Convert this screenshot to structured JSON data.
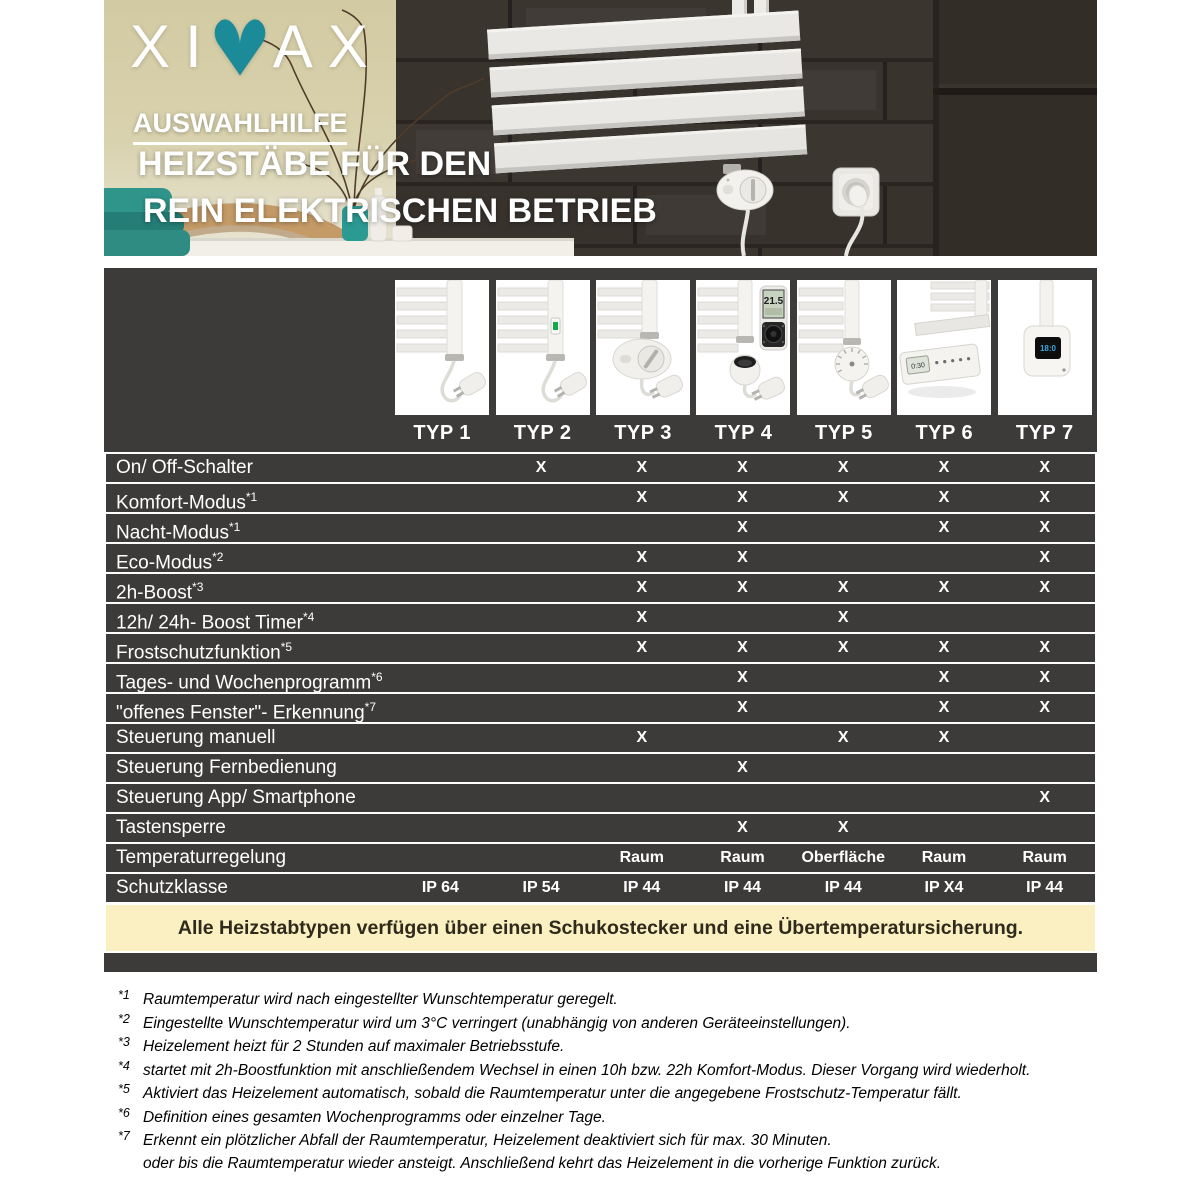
{
  "hero": {
    "logo_text_left": "XI",
    "logo_text_right": "AX",
    "eyebrow": "AUSWAHLHILFE",
    "title_line1": "HEIZSTÄBE FÜR DEN",
    "title_line2": "REIN ELEKTRISCHEN BETRIEB",
    "brand_teal": "#1b8a99"
  },
  "table": {
    "column_headers": [
      "TYP 1",
      "TYP 2",
      "TYP 3",
      "TYP 4",
      "TYP 5",
      "TYP 6",
      "TYP 7"
    ],
    "product_images": [
      "typ1-heating-rod-with-plug",
      "typ2-heating-rod-with-switch",
      "typ3-oval-dial-control",
      "typ4-round-control-with-remote",
      "typ5-thermostat-knob",
      "typ6-integrated-control-panel",
      "typ7-square-digital-control"
    ],
    "mark": "X",
    "rows": [
      {
        "label": "On/ Off-Schalter",
        "sup": "",
        "cells": [
          "",
          "X",
          "X",
          "X",
          "X",
          "X",
          "X"
        ]
      },
      {
        "label": "Komfort-Modus",
        "sup": "*1",
        "cells": [
          "",
          "",
          "X",
          "X",
          "X",
          "X",
          "X"
        ]
      },
      {
        "label": "Nacht-Modus",
        "sup": "*1",
        "cells": [
          "",
          "",
          "",
          "X",
          "",
          "X",
          "X"
        ]
      },
      {
        "label": "Eco-Modus",
        "sup": "*2",
        "cells": [
          "",
          "",
          "X",
          "X",
          "",
          "",
          "X"
        ]
      },
      {
        "label": "2h-Boost",
        "sup": "*3",
        "cells": [
          "",
          "",
          "X",
          "X",
          "X",
          "X",
          "X"
        ]
      },
      {
        "label": "12h/ 24h- Boost Timer",
        "sup": "*4",
        "cells": [
          "",
          "",
          "X",
          "",
          "X",
          "",
          ""
        ]
      },
      {
        "label": "Frostschutzfunktion",
        "sup": "*5",
        "cells": [
          "",
          "",
          "X",
          "X",
          "X",
          "X",
          "X"
        ]
      },
      {
        "label": "Tages- und Wochenprogramm",
        "sup": "*6",
        "cells": [
          "",
          "",
          "",
          "X",
          "",
          "X",
          "X"
        ]
      },
      {
        "label": "\"offenes Fenster\"- Erkennung",
        "sup": "*7",
        "cells": [
          "",
          "",
          "",
          "X",
          "",
          "X",
          "X"
        ]
      },
      {
        "label": "Steuerung manuell",
        "sup": "",
        "cells": [
          "",
          "",
          "X",
          "",
          "X",
          "X",
          ""
        ]
      },
      {
        "label": "Steuerung Fernbedienung",
        "sup": "",
        "cells": [
          "",
          "",
          "",
          "X",
          "",
          "",
          ""
        ]
      },
      {
        "label": "Steuerung App/ Smartphone",
        "sup": "",
        "cells": [
          "",
          "",
          "",
          "",
          "",
          "",
          "X"
        ]
      },
      {
        "label": "Tastensperre",
        "sup": "",
        "cells": [
          "",
          "",
          "",
          "X",
          "X",
          "",
          ""
        ]
      },
      {
        "label": "Temperaturregelung",
        "sup": "",
        "cells": [
          "",
          "",
          "Raum",
          "Raum",
          "Oberfläche",
          "Raum",
          "Raum"
        ]
      },
      {
        "label": "Schutzklasse",
        "sup": "",
        "cells": [
          "IP 64",
          "IP 54",
          "IP 44",
          "IP 44",
          "IP 44",
          "IP X4",
          "IP 44"
        ]
      }
    ],
    "note": "Alle Heizstabtypen verfügen über einen Schukostecker und eine Übertemperatursicherung."
  },
  "footnotes": [
    {
      "marker": "*1",
      "lines": [
        "Raumtemperatur wird nach eingestellter Wunschtemperatur geregelt."
      ]
    },
    {
      "marker": "*2",
      "lines": [
        "Eingestellte Wunschtemperatur wird um 3°C verringert (unabhängig von anderen Geräteeinstellungen)."
      ]
    },
    {
      "marker": "*3",
      "lines": [
        "Heizelement heizt für 2 Stunden auf maximaler Betriebsstufe."
      ]
    },
    {
      "marker": "*4",
      "lines": [
        "startet mit 2h-Boostfunktion mit anschließendem Wechsel in einen 10h bzw. 22h Komfort-Modus. Dieser Vorgang wird wiederholt."
      ]
    },
    {
      "marker": "*5",
      "lines": [
        "Aktiviert das Heizelement automatisch, sobald die Raumtemperatur unter die angegebene Frostschutz-Temperatur fällt."
      ]
    },
    {
      "marker": "*6",
      "lines": [
        "Definition eines gesamten Wochenprogramms oder einzelner Tage."
      ]
    },
    {
      "marker": "*7",
      "lines": [
        "Erkennt ein plötzlicher Abfall der Raumtemperatur, Heizelement deaktiviert sich für max. 30 Minuten.",
        "oder bis die Raumtemperatur wieder ansteigt. Anschließend kehrt das Heizelement in die vorherige Funktion zurück."
      ]
    }
  ],
  "colors": {
    "panel_dark": "#3d3b3a",
    "separator_white": "#ffffff",
    "note_yellow": "#fbf0c2",
    "note_text": "#2f2a1b",
    "brand_teal": "#1b8a99"
  }
}
